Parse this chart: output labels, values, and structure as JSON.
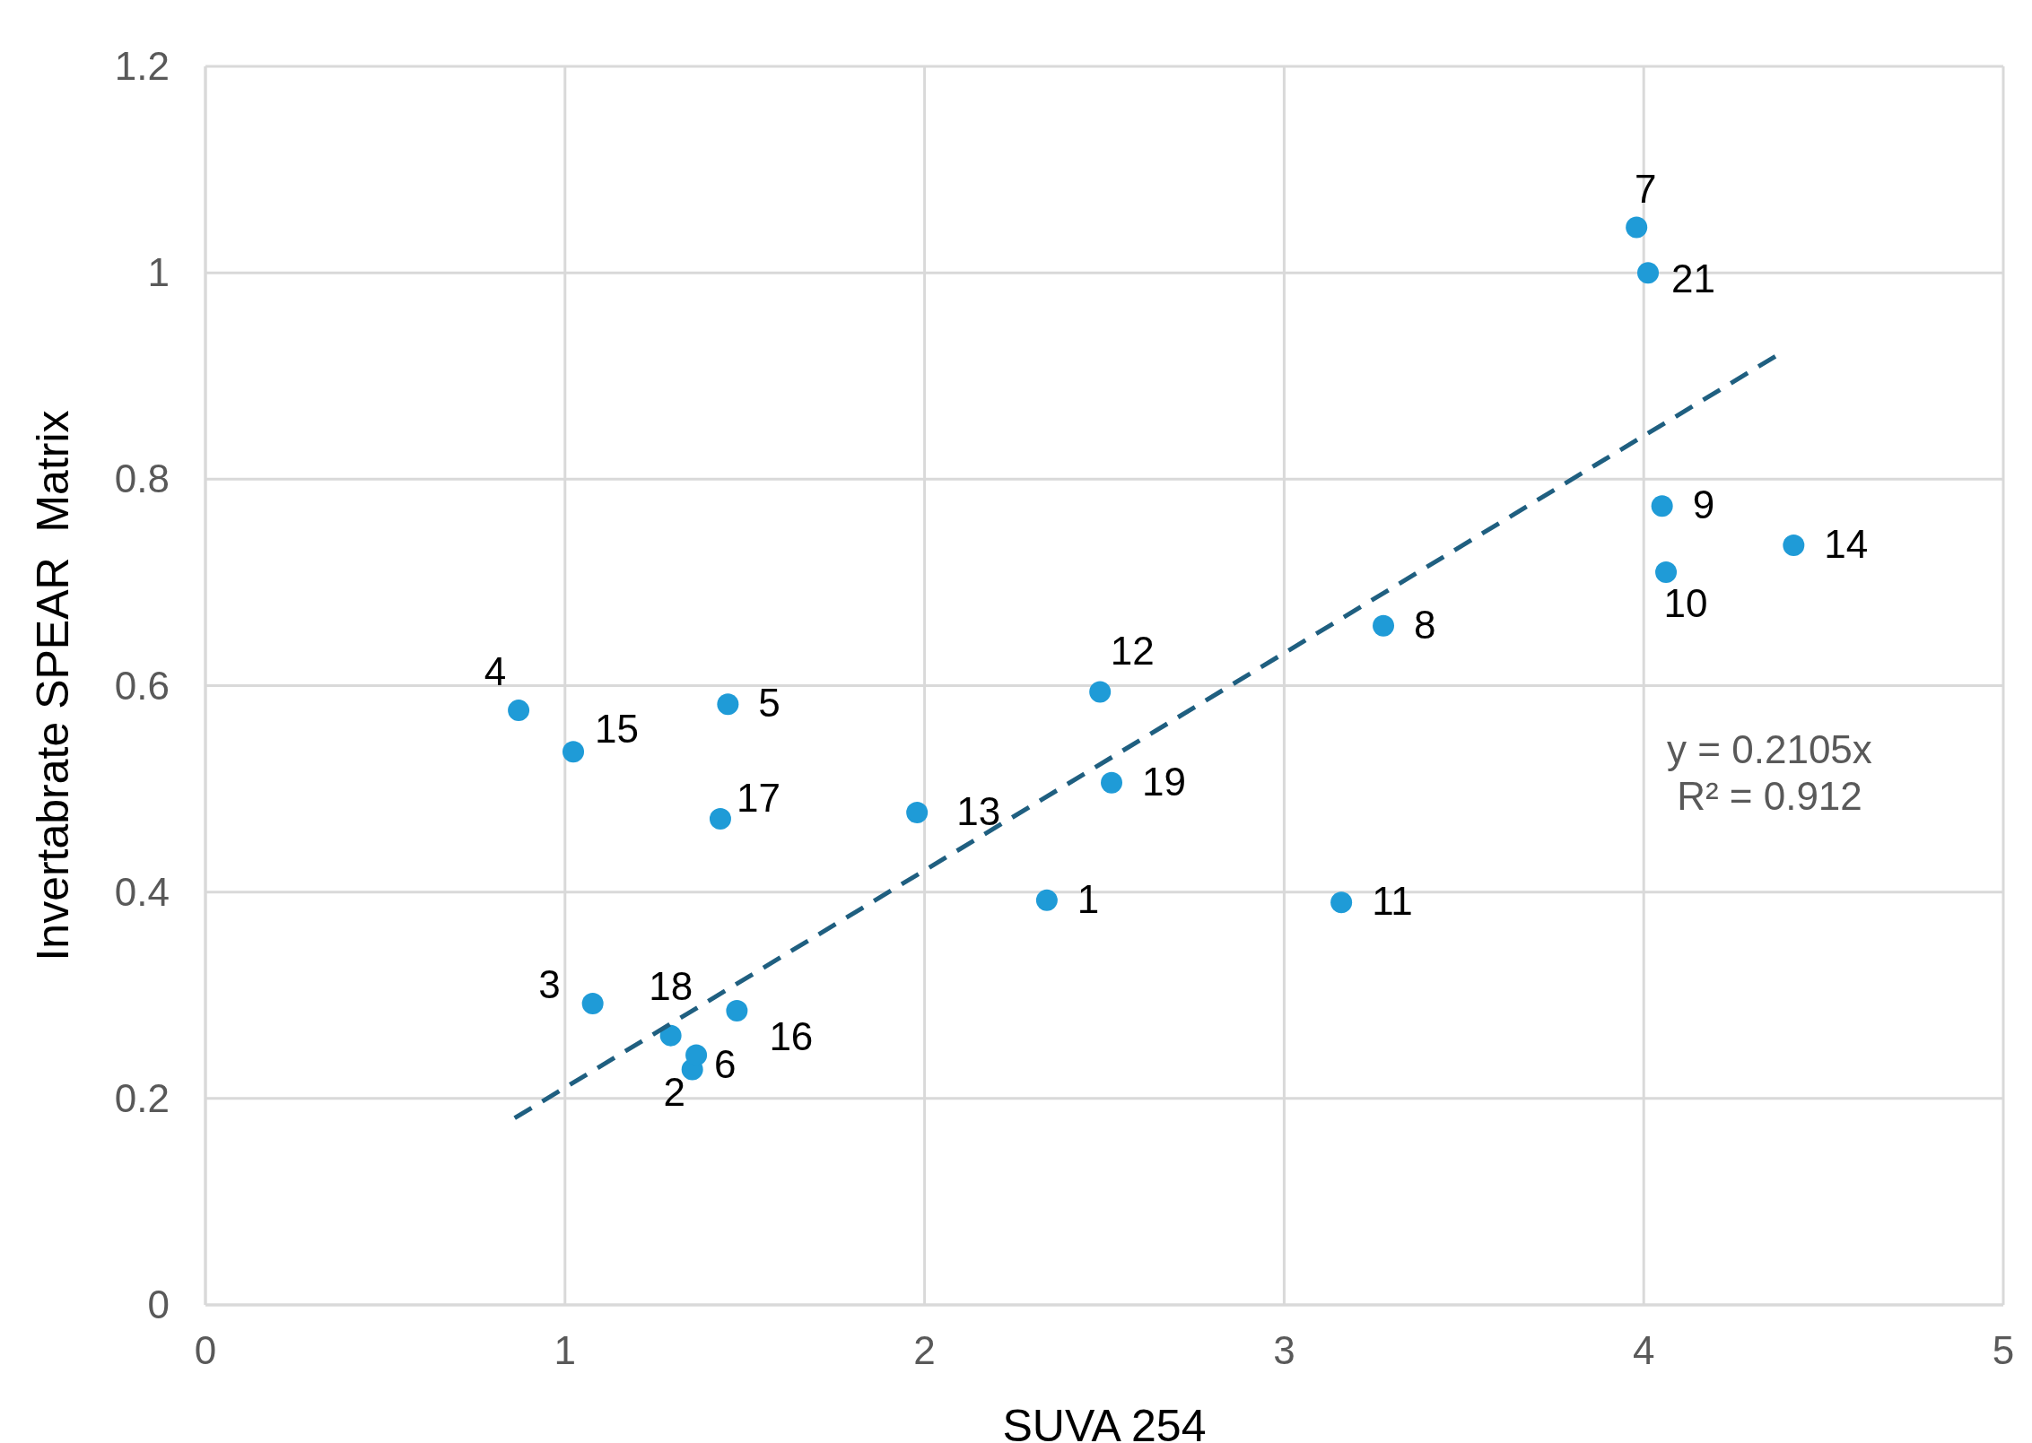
{
  "chart_data": {
    "type": "scatter",
    "xlabel": "SUVA 254",
    "ylabel": "Invertabrate SPEAR  Matrix",
    "xlim": [
      0,
      5
    ],
    "ylim": [
      0,
      1.2
    ],
    "xticks": [
      0,
      1,
      2,
      3,
      4,
      5
    ],
    "yticks": [
      0,
      0.2,
      0.4,
      0.6,
      0.8,
      1,
      1.2
    ],
    "grid": true,
    "annotations": [
      "y = 0.2105x",
      "R² = 0.912",
      {
        "text": "1",
        "x": 2.34,
        "y": 0.392
      },
      {
        "text": "2",
        "x": 1.354,
        "y": 0.228
      },
      {
        "text": "3",
        "x": 1.077,
        "y": 0.292
      },
      {
        "text": "4",
        "x": 0.871,
        "y": 0.576
      },
      {
        "text": "5",
        "x": 1.453,
        "y": 0.582
      },
      {
        "text": "6",
        "x": 1.365,
        "y": 0.242
      },
      {
        "text": "7",
        "x": 3.98,
        "y": 1.044
      },
      {
        "text": "8",
        "x": 3.276,
        "y": 0.658
      },
      {
        "text": "9",
        "x": 4.051,
        "y": 0.774
      },
      {
        "text": "10",
        "x": 4.062,
        "y": 0.71
      },
      {
        "text": "11",
        "x": 3.159,
        "y": 0.39
      },
      {
        "text": "12",
        "x": 2.488,
        "y": 0.594
      },
      {
        "text": "13",
        "x": 1.979,
        "y": 0.477
      },
      {
        "text": "14",
        "x": 4.417,
        "y": 0.736
      },
      {
        "text": "15",
        "x": 1.023,
        "y": 0.536
      },
      {
        "text": "16",
        "x": 1.478,
        "y": 0.285
      },
      {
        "text": "17",
        "x": 1.432,
        "y": 0.471
      },
      {
        "text": "18",
        "x": 1.294,
        "y": 0.261
      },
      {
        "text": "19",
        "x": 2.52,
        "y": 0.506
      },
      {
        "text": "21",
        "x": 4.012,
        "y": 1.0
      }
    ],
    "series": [
      {
        "color": "#1f9bd7",
        "marker": "circle",
        "x": [
          2.34,
          1.354,
          1.077,
          0.871,
          1.453,
          1.365,
          3.98,
          3.276,
          4.051,
          4.062,
          3.159,
          2.488,
          1.979,
          4.417,
          1.023,
          1.478,
          1.432,
          1.294,
          2.52,
          4.012
        ],
        "values": [
          0.392,
          0.228,
          0.292,
          0.576,
          0.582,
          0.242,
          1.044,
          0.658,
          0.774,
          0.71,
          0.39,
          0.594,
          0.477,
          0.736,
          0.536,
          0.285,
          0.471,
          0.261,
          0.506,
          1.0
        ]
      },
      {
        "type": "line",
        "color": "#1f5f80",
        "line_style": "dashed",
        "x": [
          0.86,
          4.38
        ],
        "values": [
          0.181,
          0.922
        ]
      }
    ]
  }
}
